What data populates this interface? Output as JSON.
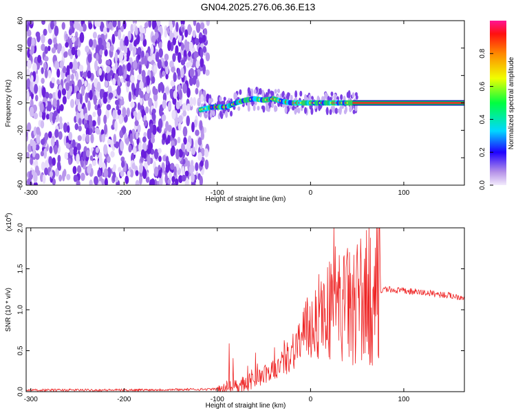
{
  "title": "GN04.2025.276.06.36.E13",
  "colors": {
    "background": "#ffffff",
    "snr_line": "#ee2222",
    "spec_low": "#8a2be2",
    "spec_line": "#ff2020"
  },
  "chart_data": [
    {
      "type": "heatmap",
      "title": "GN04.2025.276.06.36.E13",
      "xlabel": "Height of straight line (km)",
      "ylabel": "Frequency (Hz)",
      "xlim": [
        -305,
        165
      ],
      "ylim": [
        -60,
        60
      ],
      "xticks": [
        -300,
        -200,
        -100,
        0,
        100
      ],
      "yticks": [
        -60,
        -40,
        -20,
        0,
        20,
        40,
        60
      ],
      "colorbar": {
        "label": "Normalized spectral amplitude",
        "range": [
          0,
          1
        ],
        "ticks": [
          "0.0",
          "0.2",
          "0.4",
          "0.6",
          "0.8"
        ],
        "tick_values": [
          0.0,
          0.2,
          0.4,
          0.6,
          0.8
        ]
      },
      "noise_region_km": [
        -305,
        -110
      ],
      "signal_trace": {
        "x_km": [
          -118,
          -105,
          -90,
          -80,
          -70,
          -60,
          -50,
          -40,
          -30,
          -20,
          -10,
          0,
          20,
          45,
          165
        ],
        "freq_hz": [
          -5,
          -3,
          -3,
          0,
          2,
          3,
          2,
          3,
          1,
          0,
          0,
          0,
          0,
          0,
          0
        ]
      }
    },
    {
      "type": "line",
      "xlabel": "Height of straight line (km)",
      "ylabel": "SNR (10 * v/v)",
      "scale_label": "(x10",
      "scale_exp": "4",
      "xlim": [
        -305,
        165
      ],
      "ylim": [
        0,
        2.0
      ],
      "xticks": [
        -300,
        -200,
        -100,
        0,
        100
      ],
      "yticks": [
        "0.0",
        "0.5",
        "1.0",
        "1.5",
        "2.0"
      ],
      "ytick_values": [
        0.0,
        0.5,
        1.0,
        1.5,
        2.0
      ],
      "series": [
        {
          "name": "SNR",
          "x": [
            -305,
            -200,
            -100,
            -90,
            -80,
            -70,
            -60,
            -50,
            -40,
            -30,
            -20,
            -10,
            0,
            10,
            20,
            30,
            40,
            50,
            60,
            70,
            80,
            100,
            130,
            165
          ],
          "y": [
            0.02,
            0.02,
            0.03,
            0.05,
            0.08,
            0.1,
            0.15,
            0.2,
            0.25,
            0.35,
            0.5,
            0.65,
            0.8,
            0.95,
            1.0,
            1.05,
            1.05,
            1.1,
            1.15,
            1.2,
            1.25,
            1.23,
            1.2,
            1.15
          ]
        }
      ]
    }
  ]
}
